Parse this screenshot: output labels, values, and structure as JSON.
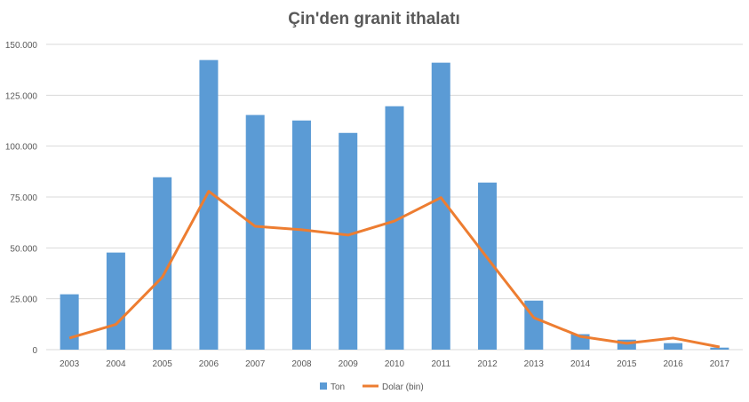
{
  "chart_data": {
    "type": "bar+line",
    "title": "Çin'den granit ithalatı",
    "categories": [
      "2003",
      "2004",
      "2005",
      "2006",
      "2007",
      "2008",
      "2009",
      "2010",
      "2011",
      "2012",
      "2013",
      "2014",
      "2015",
      "2016",
      "2017"
    ],
    "series": [
      {
        "name": "Ton",
        "type": "bar",
        "color": "#5B9BD5",
        "values": [
          27200,
          47700,
          84700,
          142300,
          115300,
          112600,
          106500,
          119600,
          141000,
          82100,
          24100,
          7600,
          4900,
          3200,
          1000
        ]
      },
      {
        "name": "Dolar (bin)",
        "type": "line",
        "color": "#ED7D31",
        "values": [
          5700,
          12400,
          35600,
          77800,
          60600,
          58900,
          56300,
          63200,
          74700,
          45000,
          15700,
          6500,
          3100,
          5700,
          1300
        ]
      }
    ],
    "ylim": [
      0,
      150000
    ],
    "yticks": [
      0,
      25000,
      50000,
      75000,
      100000,
      125000,
      150000
    ],
    "ytick_labels": [
      "0",
      "25.000",
      "50.000",
      "75.000",
      "100.000",
      "125.000",
      "150.000"
    ],
    "grid": true,
    "legend": "bottom",
    "xlabel": "",
    "ylabel": ""
  }
}
